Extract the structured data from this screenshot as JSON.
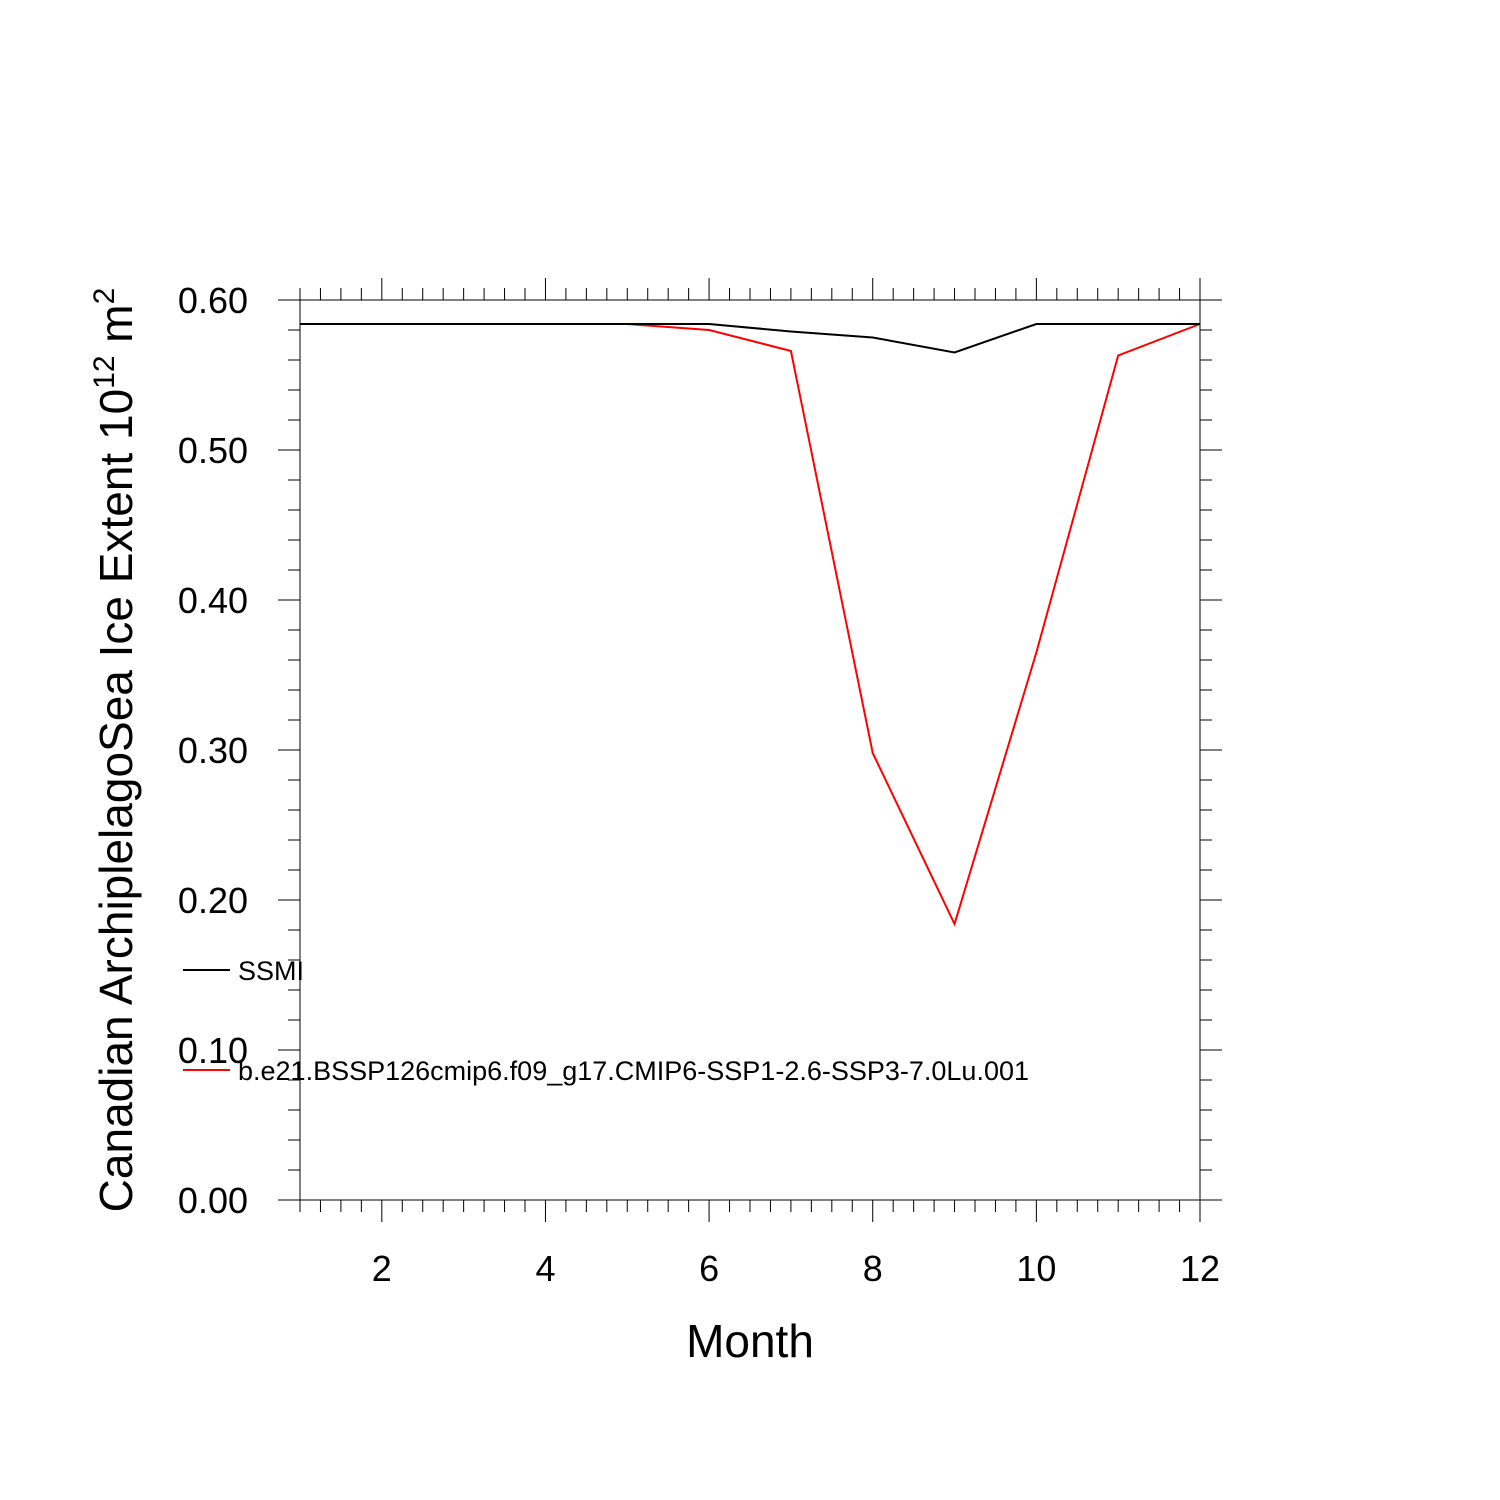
{
  "chart_data": {
    "type": "line",
    "xlabel": "Month",
    "ylabel": {
      "main": "Canadian ArchiplelagoSea Ice Extent 10",
      "sup1": "12",
      "mid": " m",
      "sup2": "2"
    },
    "xlim": [
      1,
      12
    ],
    "ylim": [
      0,
      0.6
    ],
    "x_ticks": [
      2,
      4,
      6,
      8,
      10,
      12
    ],
    "x_tick_labels": [
      "2",
      "4",
      "6",
      "8",
      "10",
      "12"
    ],
    "y_ticks": [
      0,
      0.1,
      0.2,
      0.3,
      0.4,
      0.5,
      0.6
    ],
    "y_tick_labels": [
      "0.00",
      "0.10",
      "0.20",
      "0.30",
      "0.40",
      "0.50",
      "0.60"
    ],
    "x": [
      1,
      2,
      3,
      4,
      5,
      6,
      7,
      8,
      9,
      10,
      11,
      12
    ],
    "series": [
      {
        "name": "SSMI",
        "color": "#000000",
        "values": [
          0.584,
          0.584,
          0.584,
          0.584,
          0.584,
          0.584,
          0.579,
          0.575,
          0.565,
          0.584,
          0.584,
          0.584
        ]
      },
      {
        "name": "b.e21.BSSP126cmip6.f09_g17.CMIP6-SSP1-2.6-SSP3-7.0Lu.001",
        "color": "#ff0000",
        "values": [
          0.584,
          0.584,
          0.584,
          0.584,
          0.584,
          0.58,
          0.566,
          0.298,
          0.184,
          0.365,
          0.563,
          0.584
        ]
      }
    ],
    "grid": false,
    "legend_position": "bottom-left"
  }
}
